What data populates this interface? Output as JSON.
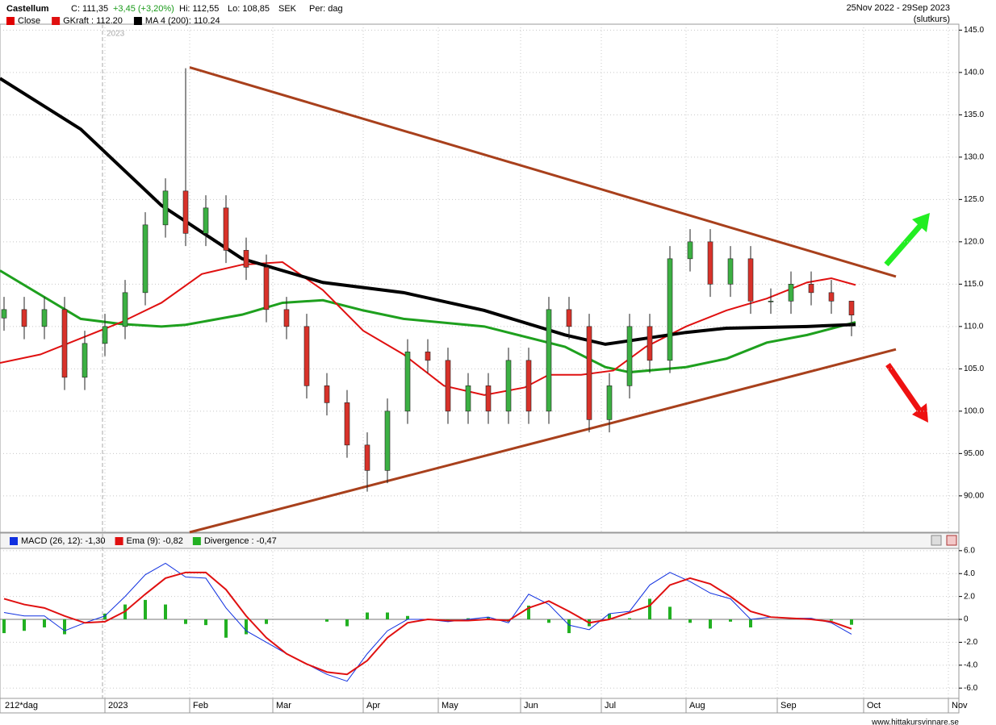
{
  "header": {
    "name": "Castellum",
    "close": "C: 111,35",
    "change": "+3,45 (+3,20%)",
    "hi": "Hi: 112,55",
    "lo": "Lo: 108,85",
    "currency": "SEK",
    "period": "Per: dag",
    "range": "25Nov 2022 - 29Sep 2023",
    "mode": "(slutkurs)",
    "year_marker": "2023"
  },
  "chart_data": [
    {
      "type": "candlestick",
      "candle_legend": {
        "name": "Close",
        "color": "#e00000"
      },
      "up_color": "#3cb043",
      "down_color": "#d8322a",
      "x": [
        1,
        6,
        11,
        16,
        21,
        26,
        31,
        36,
        41,
        46,
        51,
        56,
        61,
        66,
        71,
        76,
        81,
        86,
        91,
        96,
        101,
        106,
        111,
        116,
        121,
        126,
        131,
        136,
        141,
        146,
        151,
        156,
        161,
        166,
        171,
        176,
        181,
        186,
        191,
        196,
        201,
        206,
        211
      ],
      "open": [
        111,
        112,
        110,
        112,
        104,
        108,
        110,
        114,
        122,
        126,
        121,
        124,
        119,
        117,
        112,
        110,
        103,
        101,
        96,
        93,
        100,
        107,
        106,
        100,
        103,
        100,
        106,
        100,
        112,
        110,
        99,
        103,
        110,
        106,
        118,
        120,
        115,
        118,
        113,
        113,
        115,
        114,
        113
      ],
      "high": [
        113.5,
        113.5,
        113.5,
        113.5,
        109.5,
        111.5,
        115.5,
        123.5,
        127.5,
        140.5,
        125.5,
        125.5,
        120.5,
        118.5,
        113.5,
        111.5,
        104.5,
        102.5,
        97.5,
        101.5,
        108.5,
        108.5,
        107.5,
        104.5,
        104.5,
        107.5,
        107.5,
        113.5,
        113.5,
        111.5,
        104.5,
        111.5,
        111.5,
        119.5,
        121.5,
        121.5,
        119.5,
        119.5,
        114.5,
        116.5,
        116.5,
        115.5,
        112.55
      ],
      "low": [
        109.5,
        108.5,
        108.5,
        102.5,
        102.5,
        106.5,
        108.5,
        112.5,
        120.5,
        119.5,
        119.5,
        117.5,
        115.5,
        110.5,
        108.5,
        101.5,
        99.5,
        94.5,
        90.5,
        91.5,
        98.5,
        104.5,
        98.5,
        98.5,
        98.5,
        98.5,
        98.5,
        98.5,
        108.5,
        97.5,
        97.5,
        101.5,
        104.5,
        104.5,
        116.5,
        113.5,
        113.5,
        111.5,
        111.5,
        111.5,
        112.5,
        111.5,
        108.85
      ],
      "close": [
        112,
        110,
        112,
        104,
        108,
        110,
        114,
        122,
        126,
        121,
        124,
        119,
        117,
        112,
        110,
        103,
        101,
        96,
        93,
        100,
        107,
        106,
        100,
        103,
        100,
        106,
        100,
        112,
        110,
        99,
        103,
        110,
        106,
        118,
        120,
        115,
        118,
        113,
        113,
        115,
        114,
        113,
        111.35
      ],
      "series": [
        {
          "color": "#1ea01e",
          "width": 3,
          "x": [
            0,
            20,
            30,
            40,
            46,
            60,
            70,
            80,
            90,
            100,
            120,
            140,
            150,
            156,
            170,
            180,
            190,
            200,
            212
          ],
          "values": [
            116.6,
            110.9,
            110.3,
            110,
            110.2,
            111.4,
            112.8,
            113.1,
            111.9,
            110.9,
            110,
            107.6,
            105.2,
            104.6,
            105.2,
            106.2,
            108.1,
            109,
            110.5
          ]
        },
        {
          "name": "GKraft : 112.20",
          "color": "#e01010",
          "width": 2,
          "x": [
            0,
            10,
            20,
            30,
            40,
            50,
            60,
            70,
            80,
            90,
            100,
            110,
            120,
            130,
            136,
            144,
            152,
            160,
            170,
            180,
            190,
            200,
            206,
            212
          ],
          "values": [
            105.7,
            106.7,
            108.6,
            110.5,
            112.8,
            116.2,
            117.3,
            117.6,
            114.3,
            109.5,
            106.7,
            103,
            101.9,
            102.8,
            104.3,
            104.3,
            104.8,
            107.6,
            110,
            111.9,
            113.3,
            115.2,
            115.7,
            114.9
          ]
        },
        {
          "name": "MA 4 (200): 110.24",
          "color": "#000000",
          "width": 4,
          "x": [
            0,
            20,
            40,
            60,
            80,
            100,
            120,
            140,
            150,
            160,
            170,
            180,
            200,
            212
          ],
          "values": [
            139.3,
            133.3,
            124.3,
            118,
            115.2,
            114,
            111.9,
            109,
            107.9,
            108.6,
            109.3,
            109.8,
            110,
            110.24
          ]
        }
      ],
      "trend_lines": [
        {
          "color": "#a8401c",
          "x": [
            47,
            222
          ],
          "values": [
            140.6,
            115.9
          ]
        },
        {
          "color": "#a8401c",
          "x": [
            47,
            222
          ],
          "values": [
            85.7,
            107.3
          ]
        }
      ],
      "xlim": [
        0,
        237.6
      ],
      "ylim": [
        85.7,
        145.7
      ],
      "yticks": [
        {
          "value": 145,
          "label": "145.0"
        },
        {
          "value": 140,
          "label": "140.0"
        },
        {
          "value": 135,
          "label": "135.0"
        },
        {
          "value": 130,
          "label": "130.0"
        },
        {
          "value": 125,
          "label": "125.0"
        },
        {
          "value": 120,
          "label": "120.0"
        },
        {
          "value": 115,
          "label": "115.0"
        },
        {
          "value": 110,
          "label": "110.0"
        },
        {
          "value": 105,
          "label": "105.0"
        },
        {
          "value": 100,
          "label": "100.0"
        },
        {
          "value": 95,
          "label": "95.00"
        },
        {
          "value": 90,
          "label": "90.00"
        }
      ],
      "grid": true
    },
    {
      "type": "macd",
      "x_caption": "212*dag",
      "x": [
        1,
        6,
        11,
        16,
        21,
        26,
        31,
        36,
        41,
        46,
        51,
        56,
        61,
        66,
        71,
        76,
        81,
        86,
        91,
        96,
        101,
        106,
        111,
        116,
        121,
        126,
        131,
        136,
        141,
        146,
        151,
        156,
        161,
        166,
        171,
        176,
        181,
        186,
        191,
        196,
        201,
        206,
        211
      ],
      "series": [
        {
          "name": "MACD (26, 12): -1,30",
          "color": "#1030e0",
          "values": [
            0.6,
            0.3,
            0.3,
            -1,
            -0.3,
            0.3,
            2,
            3.9,
            4.9,
            3.7,
            3.6,
            1.0,
            -1,
            -2,
            -3,
            -3.9,
            -4.8,
            -5.4,
            -3,
            -1,
            0,
            0,
            -0.2,
            0,
            0.2,
            -0.3,
            2.2,
            1.3,
            -0.5,
            -0.9,
            0.5,
            0.7,
            3,
            4.1,
            3.3,
            2.3,
            1.8,
            0,
            0.2,
            0.1,
            0.1,
            -0.3,
            -1.3
          ]
        },
        {
          "name": "Ema (9): -0,82",
          "color": "#e01010",
          "values": [
            1.8,
            1.3,
            1.0,
            0.3,
            -0.3,
            -0.2,
            0.7,
            2.2,
            3.6,
            4.1,
            4.1,
            2.6,
            0.3,
            -1.6,
            -3,
            -3.9,
            -4.6,
            -4.8,
            -3.6,
            -1.6,
            -0.3,
            0,
            -0.1,
            -0.1,
            0,
            -0.1,
            1.0,
            1.6,
            0.7,
            -0.3,
            0,
            0.6,
            1.2,
            3,
            3.6,
            3.1,
            2,
            0.7,
            0.2,
            0.1,
            0,
            -0.2,
            -0.82
          ]
        }
      ],
      "divergence": {
        "name": "Divergence : -0,47",
        "color": "#22b022",
        "values": [
          -1.2,
          -1.0,
          -0.7,
          -1.3,
          0,
          0.5,
          1.3,
          1.7,
          1.3,
          -0.4,
          -0.5,
          -1.6,
          -1.3,
          -0.4,
          0,
          0,
          -0.2,
          -0.6,
          0.6,
          0.6,
          0.3,
          0,
          -0.1,
          0.1,
          0.2,
          -0.2,
          1.2,
          -0.3,
          -1.2,
          -0.6,
          0.5,
          0.1,
          1.8,
          1.1,
          -0.3,
          -0.8,
          -0.2,
          -0.7,
          0,
          0,
          0.1,
          -0.1,
          -0.47
        ]
      },
      "xlim": [
        0,
        237.6
      ],
      "ylim": [
        -6.9,
        6.2
      ],
      "yticks": [
        {
          "value": 6,
          "label": "6.0"
        },
        {
          "value": 4,
          "label": "4.0"
        },
        {
          "value": 2,
          "label": "2.0"
        },
        0,
        {
          "value": -2,
          "label": "-2.0"
        },
        {
          "value": -4,
          "label": "-4.0"
        },
        {
          "value": -6,
          "label": "-6.0"
        }
      ],
      "xticks": [
        {
          "value": 26,
          "label": "2023"
        },
        {
          "value": 47,
          "label": "Feb"
        },
        {
          "value": 67.6,
          "label": "Mar"
        },
        {
          "value": 90,
          "label": "Apr"
        },
        {
          "value": 108.6,
          "label": "May"
        },
        {
          "value": 129,
          "label": "Jun"
        },
        {
          "value": 149,
          "label": "Jul"
        },
        {
          "value": 170,
          "label": "Aug"
        },
        {
          "value": 192.6,
          "label": "Sep"
        },
        {
          "value": 214,
          "label": "Oct"
        },
        {
          "value": 235,
          "label": "Nov"
        }
      ],
      "grid": true
    }
  ],
  "footer": "www.hittakursvinnare.se"
}
